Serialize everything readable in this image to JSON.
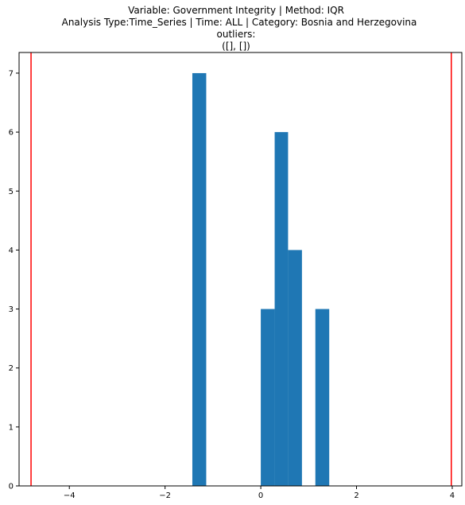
{
  "chart_data": {
    "type": "bar",
    "title_lines": [
      "Variable: Government Integrity | Method: IQR",
      "Analysis Type:Time_Series | Time: ALL | Category: Bosnia and Herzegovina",
      "outliers:",
      "([], [])"
    ],
    "xlabel": "",
    "ylabel": "",
    "xlim": [
      -5.05,
      4.2
    ],
    "ylim": [
      0,
      7.35
    ],
    "x_ticks": [
      -4,
      -2,
      0,
      2,
      4
    ],
    "x_tick_labels": [
      "−4",
      "−2",
      "0",
      "2",
      "4"
    ],
    "y_ticks": [
      0,
      1,
      2,
      3,
      4,
      5,
      6,
      7
    ],
    "y_tick_labels": [
      "0",
      "1",
      "2",
      "3",
      "4",
      "5",
      "6",
      "7"
    ],
    "bars": [
      {
        "x0": -1.43,
        "x1": -1.14,
        "value": 7
      },
      {
        "x0": 0.0,
        "x1": 0.29,
        "value": 3
      },
      {
        "x0": 0.29,
        "x1": 0.57,
        "value": 6
      },
      {
        "x0": 0.57,
        "x1": 0.86,
        "value": 4
      },
      {
        "x0": 1.14,
        "x1": 1.43,
        "value": 3
      }
    ],
    "vlines": [
      {
        "x": -4.8,
        "color": "#ff0000"
      },
      {
        "x": 3.98,
        "color": "#ff0000"
      }
    ],
    "bar_color": "#1f77b4",
    "grid": false,
    "legend": "none"
  }
}
